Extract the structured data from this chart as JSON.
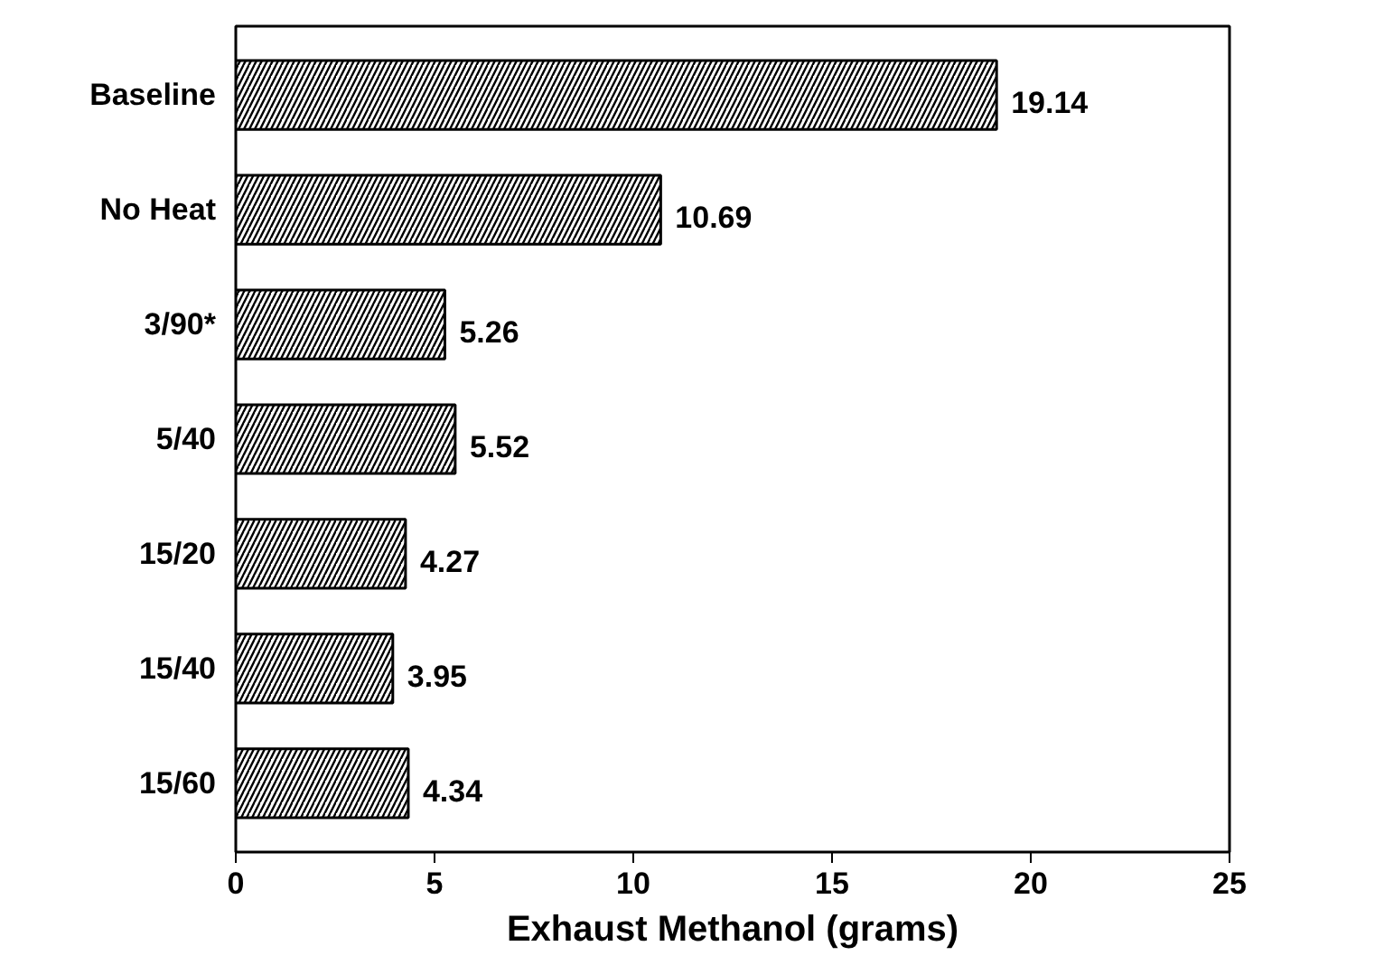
{
  "chart_data": {
    "type": "bar",
    "orientation": "horizontal",
    "xlabel": "Exhaust Methanol (grams)",
    "categories": [
      "Baseline",
      "No Heat",
      "3/90*",
      "5/40",
      "15/20",
      "15/40",
      "15/60"
    ],
    "values": [
      19.14,
      10.69,
      5.26,
      5.52,
      4.27,
      3.95,
      4.34
    ],
    "color": "#000000",
    "xlim": [
      0,
      25
    ],
    "xticks": [
      0,
      5,
      10,
      15,
      20,
      25
    ],
    "data_labels": true,
    "grid": false
  }
}
